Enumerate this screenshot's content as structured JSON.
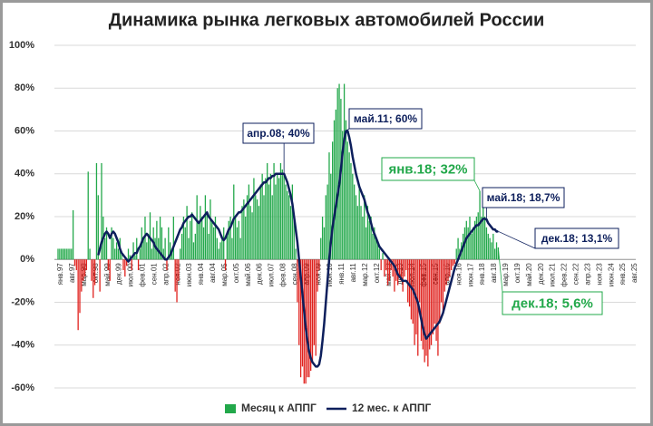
{
  "chart_data": {
    "type": "bar_line",
    "title": "Динамика рынка легковых автомобилей России",
    "categories": [
      "янв.97",
      null,
      null,
      null,
      null,
      null,
      null,
      "авг.97",
      null,
      null,
      null,
      null,
      null,
      null,
      "мар.98",
      null,
      null,
      null,
      null,
      null,
      null,
      "окт.98",
      null,
      null,
      null,
      null,
      null,
      null,
      "май.99",
      null,
      null,
      null,
      null,
      null,
      null,
      "дек.99",
      null,
      null,
      null,
      null,
      null,
      null,
      "июл.00",
      null,
      null,
      null,
      null,
      null,
      null,
      "фев.01",
      null,
      null,
      null,
      null,
      null,
      null,
      "сен.01",
      null,
      null,
      null,
      null,
      null,
      null,
      "апр.02",
      null,
      null,
      null,
      null,
      null,
      null,
      "ноя.02",
      null,
      null,
      null,
      null,
      null,
      null,
      "июн.03",
      null,
      null,
      null,
      null,
      null,
      null,
      "янв.04",
      null,
      null,
      null,
      null,
      null,
      null,
      "авг.04",
      null,
      null,
      null,
      null,
      null,
      null,
      "мар.05",
      null,
      null,
      null,
      null,
      null,
      null,
      "окт.05",
      null,
      null,
      null,
      null,
      null,
      null,
      "май.06",
      null,
      null,
      null,
      null,
      null,
      null,
      "дек.06",
      null,
      null,
      null,
      null,
      null,
      null,
      "июл.07",
      null,
      null,
      null,
      null,
      null,
      null,
      "фев.08",
      null,
      null,
      null,
      null,
      null,
      null,
      "сен.08",
      null,
      null,
      null,
      null,
      null,
      null,
      "апр.09",
      null,
      null,
      null,
      null,
      null,
      null,
      "ноя.09",
      null,
      null,
      null,
      null,
      null,
      null,
      "июн.10",
      null,
      null,
      null,
      null,
      null,
      null,
      "янв.11",
      null,
      null,
      null,
      null,
      null,
      null,
      "авг.11",
      null,
      null,
      null,
      null,
      null,
      null,
      "мар.12",
      null,
      null,
      null,
      null,
      null,
      null,
      "окт.12",
      null,
      null,
      null,
      null,
      null,
      null,
      "май.13",
      null,
      null,
      null,
      null,
      null,
      null,
      "дек.13",
      null,
      null,
      null,
      null,
      null,
      null,
      "июл.14",
      null,
      null,
      null,
      null,
      null,
      null,
      "фев.15",
      null,
      null,
      null,
      null,
      null,
      null,
      "сен.15",
      null,
      null,
      null,
      null,
      null,
      null,
      "апр.16",
      null,
      null,
      null,
      null,
      null,
      null,
      "ноя.16",
      null,
      null,
      null,
      null,
      null,
      null,
      "июн.17",
      null,
      null,
      null,
      null,
      null,
      null,
      "янв.18",
      null,
      null,
      null,
      null,
      null,
      null,
      "авг.18",
      null,
      null,
      null,
      null,
      null,
      null,
      "мар.19",
      null,
      null,
      null,
      null,
      null,
      null,
      "окт.19",
      null,
      null,
      null,
      null,
      null,
      null,
      "май.20",
      null,
      null,
      null,
      null,
      null,
      null,
      "дек.20",
      null,
      null,
      null,
      null,
      null,
      null,
      "июл.21",
      null,
      null,
      null,
      null,
      null,
      null,
      "фев.22",
      null,
      null,
      null,
      null,
      null,
      null,
      "сен.22",
      null,
      null,
      null,
      null,
      null,
      null,
      "апр.23",
      null,
      null,
      null,
      null,
      null,
      null,
      "ноя.23",
      null,
      null,
      null,
      null,
      null,
      null,
      "июн.24",
      null,
      null,
      null,
      null,
      null,
      null,
      "янв.25",
      null,
      null,
      null,
      null,
      null,
      null,
      "авг.25"
    ],
    "series": [
      {
        "name": "Месяц к АППГ",
        "type": "bar",
        "color": "#22a84a",
        "negative_color": "#e0201c",
        "values": [
          5,
          5,
          5,
          5,
          5,
          5,
          5,
          5,
          5,
          23,
          -3,
          -5,
          -33,
          -25,
          -15,
          -10,
          -8,
          -5,
          41,
          5,
          -10,
          -18,
          -12,
          45,
          30,
          -15,
          45,
          20,
          10,
          15,
          -5,
          -10,
          15,
          10,
          5,
          8,
          5,
          10,
          3,
          -5,
          -8,
          -3,
          5,
          2,
          -5,
          8,
          2,
          10,
          -5,
          5,
          15,
          10,
          20,
          8,
          12,
          22,
          5,
          15,
          10,
          18,
          10,
          20,
          15,
          5,
          10,
          -5,
          15,
          8,
          5,
          20,
          -15,
          -20,
          -10,
          5,
          12,
          20,
          15,
          25,
          10,
          18,
          22,
          8,
          12,
          30,
          18,
          25,
          20,
          15,
          30,
          22,
          12,
          28,
          18,
          15,
          20,
          10,
          5,
          8,
          10,
          15,
          -5,
          12,
          18,
          20,
          10,
          35,
          20,
          15,
          18,
          10,
          25,
          28,
          20,
          30,
          35,
          25,
          22,
          38,
          30,
          28,
          25,
          35,
          40,
          30,
          38,
          45,
          35,
          40,
          30,
          45,
          35,
          40,
          38,
          45,
          42,
          40,
          35,
          32,
          30,
          25,
          35,
          20,
          5,
          -20,
          -40,
          -55,
          -50,
          -58,
          -58,
          -55,
          -55,
          -52,
          -48,
          -40,
          -45,
          -15,
          -5,
          10,
          20,
          15,
          30,
          35,
          50,
          40,
          55,
          65,
          70,
          80,
          82,
          75,
          60,
          82,
          65,
          55,
          50,
          45,
          40,
          35,
          30,
          25,
          35,
          25,
          20,
          30,
          15,
          25,
          18,
          20,
          12,
          15,
          10,
          8,
          5,
          -5,
          3,
          -8,
          -5,
          -12,
          -10,
          -5,
          -8,
          -15,
          -10,
          -12,
          -8,
          -10,
          -15,
          -8,
          -5,
          -20,
          -22,
          -28,
          -30,
          -40,
          -35,
          -45,
          -20,
          -38,
          -42,
          -48,
          -45,
          -50,
          -42,
          -40,
          -35,
          -30,
          -38,
          -45,
          -30,
          -20,
          -25,
          -15,
          -12,
          -10,
          -8,
          -5,
          -3,
          -2,
          5,
          10,
          5,
          8,
          12,
          15,
          18,
          15,
          20,
          12,
          15,
          18,
          20,
          22,
          32,
          20,
          25,
          20,
          15,
          12,
          10,
          8,
          12,
          5,
          8,
          5.6,
          null,
          null,
          null,
          null,
          null,
          null,
          null,
          null,
          null,
          null,
          null,
          null,
          null,
          null,
          null,
          null,
          null,
          null,
          null,
          null,
          null,
          null,
          null,
          null,
          null,
          null,
          null,
          null,
          null,
          null,
          null,
          null,
          null,
          null,
          null,
          null,
          null,
          null,
          null,
          null,
          null,
          null,
          null,
          null,
          null,
          null,
          null,
          null,
          null,
          null,
          null,
          null,
          null,
          null,
          null,
          null,
          null,
          null,
          null,
          null,
          null,
          null,
          null,
          null,
          null,
          null,
          null,
          null,
          null,
          null,
          null,
          null,
          null,
          null,
          null,
          null,
          null,
          null,
          null,
          null
        ]
      },
      {
        "name": "12 мес. к АППГ",
        "type": "line",
        "color": "#0d1f5c",
        "values": [
          null,
          null,
          null,
          null,
          null,
          null,
          null,
          null,
          null,
          null,
          null,
          null,
          null,
          null,
          null,
          null,
          null,
          null,
          null,
          null,
          null,
          null,
          null,
          null,
          2,
          5,
          8,
          10,
          12,
          13,
          12,
          10,
          12,
          13,
          12,
          10,
          8,
          5,
          3,
          2,
          1,
          0,
          -1,
          0,
          1,
          2,
          3,
          3,
          5,
          6,
          8,
          10,
          11,
          12,
          11,
          10,
          9,
          8,
          6,
          5,
          4,
          3,
          2,
          1,
          0,
          0,
          1,
          2,
          4,
          6,
          8,
          10,
          12,
          14,
          15,
          17,
          18,
          19,
          20,
          20,
          21,
          20,
          19,
          18,
          17,
          18,
          19,
          20,
          21,
          22,
          20,
          19,
          18,
          17,
          16,
          15,
          14,
          12,
          10,
          9,
          10,
          12,
          14,
          15,
          17,
          19,
          20,
          21,
          22,
          22,
          23,
          24,
          25,
          26,
          27,
          28,
          29,
          30,
          31,
          32,
          33,
          34,
          35,
          36,
          36,
          37,
          38,
          38,
          39,
          39,
          40,
          40,
          40,
          40,
          40,
          40,
          38,
          36,
          33,
          30,
          26,
          20,
          14,
          8,
          0,
          -8,
          -16,
          -24,
          -32,
          -38,
          -43,
          -46,
          -48,
          -49,
          -50,
          -50,
          -49,
          -45,
          -38,
          -30,
          -20,
          -10,
          0,
          8,
          15,
          20,
          25,
          30,
          35,
          42,
          50,
          56,
          60,
          60,
          57,
          53,
          48,
          44,
          40,
          37,
          34,
          32,
          30,
          28,
          25,
          22,
          20,
          17,
          14,
          12,
          10,
          8,
          6,
          5,
          4,
          3,
          2,
          1,
          0,
          -1,
          -2,
          -3,
          -5,
          -7,
          -8,
          -9,
          -10,
          -10,
          -10,
          -11,
          -12,
          -13,
          -14,
          -16,
          -18,
          -20,
          -24,
          -28,
          -32,
          -35,
          -37,
          -36,
          -35,
          -34,
          -33,
          -32,
          -31,
          -30,
          -29,
          -27,
          -25,
          -22,
          -19,
          -16,
          -13,
          -10,
          -7,
          -4,
          -2,
          0,
          2,
          4,
          6,
          8,
          10,
          11,
          12,
          13,
          14,
          15,
          16,
          16,
          17,
          18,
          19,
          19,
          18.7,
          17,
          16,
          15,
          14,
          14,
          13,
          13.1,
          null,
          null,
          null,
          null,
          null,
          null,
          null,
          null,
          null,
          null,
          null,
          null,
          null,
          null,
          null,
          null,
          null,
          null,
          null,
          null,
          null,
          null,
          null,
          null,
          null,
          null,
          null,
          null,
          null,
          null,
          null,
          null,
          null,
          null,
          null,
          null,
          null,
          null,
          null,
          null,
          null,
          null,
          null,
          null,
          null,
          null,
          null,
          null,
          null,
          null,
          null,
          null,
          null,
          null,
          null,
          null,
          null,
          null,
          null,
          null,
          null,
          null,
          null,
          null,
          null,
          null,
          null,
          null,
          null,
          null,
          null,
          null,
          null,
          null,
          null,
          null,
          null,
          null,
          null,
          null
        ]
      }
    ],
    "ylim": [
      -60,
      100
    ],
    "yticks": [
      {
        "value": -60,
        "label": "-60%"
      },
      {
        "value": -40,
        "label": "-40%"
      },
      {
        "value": -20,
        "label": "-20%"
      },
      {
        "value": 0,
        "label": "0%"
      },
      {
        "value": 20,
        "label": "20%"
      },
      {
        "value": 40,
        "label": "40%"
      },
      {
        "value": 60,
        "label": "60%"
      },
      {
        "value": 80,
        "label": "80%"
      },
      {
        "value": 100,
        "label": "100%"
      }
    ],
    "grid": true,
    "legend": "bottom",
    "annotations": [
      {
        "text": "апр.08; 40%",
        "color": "#0d1f5c"
      },
      {
        "text": "май.11; 60%",
        "color": "#0d1f5c"
      },
      {
        "text": "янв.18; 32%",
        "color": "#22a84a"
      },
      {
        "text": "май.18; 18,7%",
        "color": "#0d1f5c"
      },
      {
        "text": "дек.18; 13,1%",
        "color": "#0d1f5c"
      },
      {
        "text": "дек.18; 5,6%",
        "color": "#22a84a"
      }
    ]
  }
}
